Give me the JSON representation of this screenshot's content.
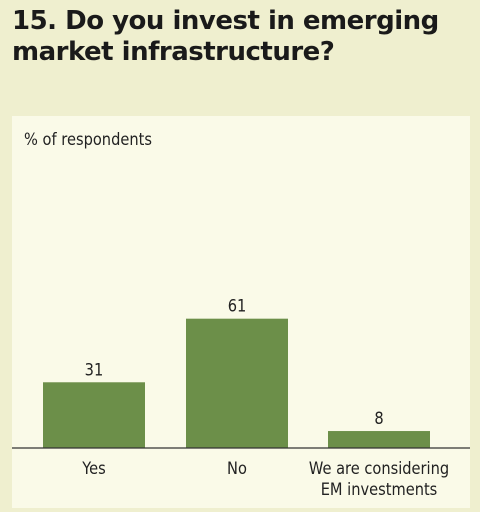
{
  "title": "15. Do you invest in emerging market infrastructure?",
  "colors": {
    "bar": "#6c8f49",
    "background": "#efefcf",
    "panel": "#fafae8",
    "text": "#222222"
  },
  "chart_data": {
    "type": "bar",
    "title": "15. Do you invest in emerging market infrastructure?",
    "ylabel": "% of respondents",
    "xlabel": "",
    "categories": [
      [
        "Yes"
      ],
      [
        "No"
      ],
      [
        "We are considering",
        "EM investments"
      ]
    ],
    "values": [
      31,
      61,
      8
    ],
    "ylim": [
      0,
      65
    ],
    "grid": false,
    "data_labels": true
  }
}
